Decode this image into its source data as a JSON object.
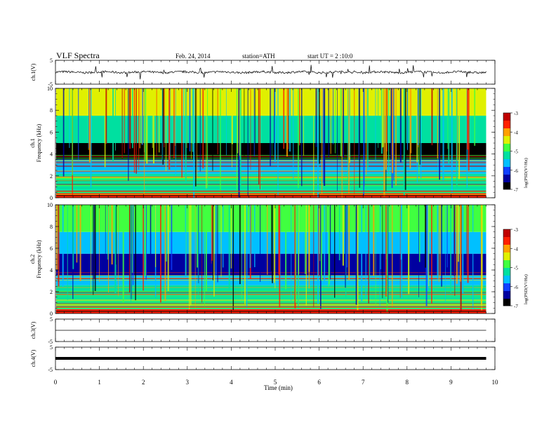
{
  "header": {
    "title": "VLF Spectra",
    "date": "Feb. 24, 2014",
    "station": "station=ATH",
    "start": "start UT = 2 :10:0"
  },
  "xaxis": {
    "label": "Time (min)",
    "ticks": [
      "0",
      "1",
      "2",
      "3",
      "4",
      "5",
      "6",
      "7",
      "8",
      "9",
      "10"
    ],
    "range": [
      0,
      10
    ],
    "data_end": 9.8
  },
  "chart_data": [
    {
      "type": "line",
      "panel": "ch1-waveform",
      "ylabel": "ch.1(V)",
      "ylim": [
        -5,
        5
      ],
      "yticks": [
        "5",
        "-5"
      ],
      "x": [
        0,
        0.5,
        1,
        1.5,
        2,
        2.5,
        3,
        3.5,
        4,
        4.5,
        5,
        5.5,
        6,
        6.5,
        7,
        7.5,
        8,
        8.5,
        9,
        9.8
      ],
      "series": [
        {
          "values": [
            0.2,
            -0.1,
            0.3,
            -0.2,
            0.4,
            0.1,
            -0.3,
            0.2,
            0.0,
            -0.1,
            0.3,
            -0.2,
            0.1,
            0.3,
            -0.1,
            0.2,
            0.4,
            0.1,
            -0.2,
            0.3
          ]
        }
      ]
    },
    {
      "type": "heatmap",
      "panel": "ch1-spectrogram",
      "ylabel": "ch.1 Frequency (kHz)",
      "ylim": [
        0,
        10
      ],
      "yticks": [
        "0",
        "2",
        "4",
        "6",
        "8",
        "10"
      ],
      "colorbar": {
        "label": "log(PSD(V²/Hz)",
        "ticks": [
          "-3",
          "-4",
          "-5",
          "-6",
          "-7"
        ],
        "range": [
          -7,
          -3
        ]
      },
      "bands_khz": [
        {
          "from": 0,
          "to": 0.4,
          "log_psd": -3.5
        },
        {
          "from": 0.4,
          "to": 2.2,
          "log_psd": -5.2
        },
        {
          "from": 2.2,
          "to": 3.5,
          "log_psd": -5.6
        },
        {
          "from": 3.5,
          "to": 5.0,
          "log_psd": -6.7
        },
        {
          "from": 5.0,
          "to": 7.5,
          "log_psd": -5.3
        },
        {
          "from": 7.5,
          "to": 10,
          "log_psd": -4.6
        }
      ]
    },
    {
      "type": "heatmap",
      "panel": "ch2-spectrogram",
      "ylabel": "ch.2 Frequency (kHz)",
      "ylim": [
        0,
        10
      ],
      "yticks": [
        "0",
        "2",
        "4",
        "6",
        "8",
        "10"
      ],
      "colorbar": {
        "label": "log(PSD(V²/Hz)",
        "ticks": [
          "-3",
          "-4",
          "-5",
          "-6",
          "-7"
        ],
        "range": [
          -7,
          -3
        ]
      },
      "bands_khz": [
        {
          "from": 0,
          "to": 0.4,
          "log_psd": -3.8
        },
        {
          "from": 0.4,
          "to": 2.6,
          "log_psd": -5.1
        },
        {
          "from": 2.6,
          "to": 3.5,
          "log_psd": -5.5
        },
        {
          "from": 3.5,
          "to": 5.5,
          "log_psd": -6.5
        },
        {
          "from": 5.5,
          "to": 7.5,
          "log_psd": -5.4
        },
        {
          "from": 7.5,
          "to": 10,
          "log_psd": -4.7
        }
      ]
    },
    {
      "type": "line",
      "panel": "ch3-waveform",
      "ylabel": "ch.3(V)",
      "ylim": [
        -5,
        5
      ],
      "yticks": [
        "5",
        "-5"
      ],
      "x": [
        0,
        9.8
      ],
      "series": [
        {
          "values": [
            0,
            0
          ]
        }
      ]
    },
    {
      "type": "line",
      "panel": "ch4-waveform",
      "ylabel": "ch.4(V)",
      "ylim": [
        -5,
        5
      ],
      "yticks": [
        "5",
        "-5"
      ],
      "x": [
        0,
        9.8
      ],
      "series": [
        {
          "values": [
            0,
            0
          ]
        }
      ]
    }
  ],
  "colors": {
    "line": "#000000",
    "colormap": [
      "#000000",
      "#0000a0",
      "#1040ff",
      "#00c0ff",
      "#00e0a0",
      "#40ff40",
      "#e0f000",
      "#ffa000",
      "#ff2000",
      "#c00000",
      "#ffffff"
    ]
  }
}
